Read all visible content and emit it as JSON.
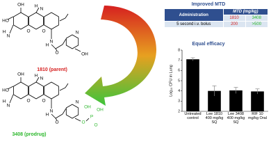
{
  "structures": {
    "parent": {
      "label": "1810 (parent)",
      "atoms": [
        "OH",
        "HO",
        "N",
        "H",
        "H",
        "N",
        "O",
        "O",
        "H",
        "N",
        "O",
        "N",
        "OH"
      ]
    },
    "prodrug": {
      "label": "3408 (prodrug)",
      "atoms": [
        "OH",
        "HO",
        "N",
        "H",
        "H",
        "N",
        "O",
        "O",
        "H",
        "N",
        "O",
        "N",
        "O",
        "P",
        "OH",
        "OH",
        "O"
      ]
    }
  },
  "table": {
    "title": "Improved MTD",
    "header": [
      "Administration",
      "MTD (mg/kg)"
    ],
    "rows": [
      [
        "1810",
        "3408"
      ],
      [
        "5 second i.v. bolus",
        "200",
        ">500"
      ]
    ]
  },
  "chart_data": {
    "type": "bar",
    "title": "Equal efficacy",
    "y_label": "Log₁₀ CFU in Lung",
    "categories": [
      "Untreated control",
      "Lee 1810 400 mg/kg SQ",
      "Lee 3408 400 mg/kg SQ",
      "RIF 10 mg/kg Oral"
    ],
    "values": [
      7.1,
      4.0,
      4.05,
      3.95
    ],
    "errors": [
      0.15,
      0.5,
      0.3,
      0.25
    ],
    "color": "#000000",
    "ylim": [
      2,
      8
    ],
    "yticks": [
      2,
      3,
      4,
      5,
      6,
      7,
      8
    ]
  }
}
